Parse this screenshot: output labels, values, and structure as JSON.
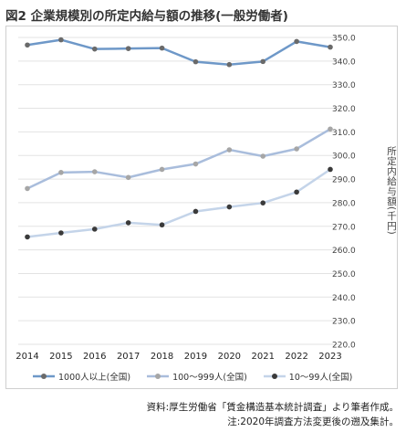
{
  "title": "図2 企業規模別の所定内給与額の推移(一般労働者)",
  "chart_data": {
    "type": "line",
    "x": [
      "2014",
      "2015",
      "2016",
      "2017",
      "2018",
      "2019",
      "2020",
      "2021",
      "2022",
      "2023"
    ],
    "series": [
      {
        "name": "1000人以上(全国)",
        "color": "#6e98c8",
        "values": [
          346.8,
          349.0,
          345.1,
          345.3,
          345.5,
          339.7,
          338.5,
          339.8,
          348.3,
          345.9
        ]
      },
      {
        "name": "100〜999人(全国)",
        "color": "#a9bddc",
        "values": [
          286.0,
          292.8,
          293.1,
          290.7,
          294.1,
          296.4,
          302.4,
          299.7,
          302.8,
          311.2
        ]
      },
      {
        "name": "10〜99人(全国)",
        "color": "#c4d4e9",
        "values": [
          265.5,
          267.2,
          268.8,
          271.5,
          270.6,
          276.3,
          278.2,
          279.9,
          284.5,
          294.1
        ]
      }
    ],
    "ylim": [
      220,
      350
    ],
    "yticks": [
      "220.0",
      "230.0",
      "240.0",
      "250.0",
      "260.0",
      "270.0",
      "280.0",
      "290.0",
      "300.0",
      "310.0",
      "320.0",
      "330.0",
      "340.0",
      "350.0"
    ],
    "ylabel": "所定内給与額(千円)",
    "marker_colors": [
      "#6a6a6a",
      "#a6a6a6",
      "#3a3a3a"
    ]
  },
  "source": "資料:厚生労働省「賃金構造基本統計調査」より筆者作成。",
  "note": "注:2020年調査方法変更後の遡及集計。"
}
